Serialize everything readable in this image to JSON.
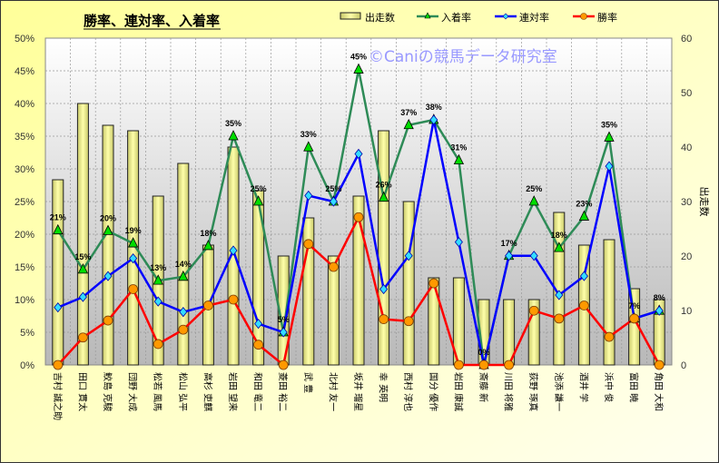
{
  "chart_data": {
    "type": "bar+line",
    "title": "勝率、連対率、入着率",
    "watermark": "©Caniの競馬データ研究室",
    "categories": [
      "吉村 誠之助",
      "田口 貫太",
      "鮫島 克駿",
      "団野 大成",
      "松若 風馬",
      "松山 弘平",
      "高杉 吏麒",
      "岩田 望来",
      "和田 竜二",
      "菱田 裕二",
      "武 豊",
      "北村 友一",
      "坂井 瑠星",
      "幸 英明",
      "西村 淳也",
      "国分 優作",
      "岩田 康誠",
      "斎藤 新",
      "川田 将雅",
      "荻野 琢真",
      "池添 謙一",
      "酒井 学",
      "浜中 俊",
      "富田 暁",
      "角田 大和"
    ],
    "series": [
      {
        "name": "出走数",
        "type": "bar",
        "axis": "right",
        "color": "#FFFF99",
        "values": [
          34,
          48,
          44,
          43,
          31,
          37,
          22,
          40,
          32,
          20,
          27,
          20,
          31,
          43,
          30,
          16,
          16,
          12,
          12,
          12,
          28,
          22,
          23,
          14,
          12
        ]
      },
      {
        "name": "入着率",
        "type": "line",
        "axis": "left",
        "color": "#2E8B57",
        "marker": "triangle",
        "marker_color": "#00DD00",
        "values": [
          20.6,
          14.6,
          20.5,
          18.6,
          12.9,
          13.5,
          18.2,
          35.0,
          25.0,
          5.0,
          33.3,
          25.0,
          45.2,
          25.6,
          36.7,
          37.5,
          31.3,
          0,
          16.7,
          25.0,
          17.9,
          22.7,
          34.8,
          7.1,
          8.3
        ],
        "labels": [
          "21%",
          "15%",
          "20%",
          "19%",
          "13%",
          "14%",
          "18%",
          "35%",
          "25%",
          "5%",
          "33%",
          "25%",
          "45%",
          "26%",
          "37%",
          "38%",
          "31%",
          "0%",
          "17%",
          "25%",
          "18%",
          "23%",
          "35%",
          "7%",
          "8%"
        ]
      },
      {
        "name": "連対率",
        "type": "line",
        "axis": "left",
        "color": "#0000FF",
        "marker": "diamond",
        "marker_color": "#33DDFF",
        "values": [
          8.8,
          10.4,
          13.6,
          16.3,
          9.7,
          8.1,
          9.1,
          17.5,
          6.3,
          5.0,
          25.9,
          25.0,
          32.3,
          11.6,
          16.7,
          37.5,
          18.8,
          0,
          16.7,
          16.7,
          10.7,
          13.6,
          30.4,
          7.1,
          8.3
        ]
      },
      {
        "name": "勝率",
        "type": "line",
        "axis": "left",
        "color": "#FF0000",
        "marker": "circle",
        "marker_color": "#FF9900",
        "values": [
          0,
          4.2,
          6.8,
          11.6,
          3.2,
          5.4,
          9.1,
          10.0,
          3.1,
          0,
          18.5,
          15.0,
          22.6,
          7.0,
          6.7,
          12.5,
          0,
          0,
          0,
          8.3,
          7.1,
          9.1,
          4.3,
          7.1,
          0
        ]
      }
    ],
    "left_axis": {
      "ylim": [
        0,
        50
      ],
      "ticks": [
        "0%",
        "5%",
        "10%",
        "15%",
        "20%",
        "25%",
        "30%",
        "35%",
        "40%",
        "45%",
        "50%"
      ]
    },
    "right_axis": {
      "label": "出走数",
      "ylim": [
        0,
        60
      ],
      "ticks": [
        "0",
        "10",
        "20",
        "30",
        "40",
        "50",
        "60"
      ]
    },
    "legend_position": "top-right",
    "grid": true
  }
}
